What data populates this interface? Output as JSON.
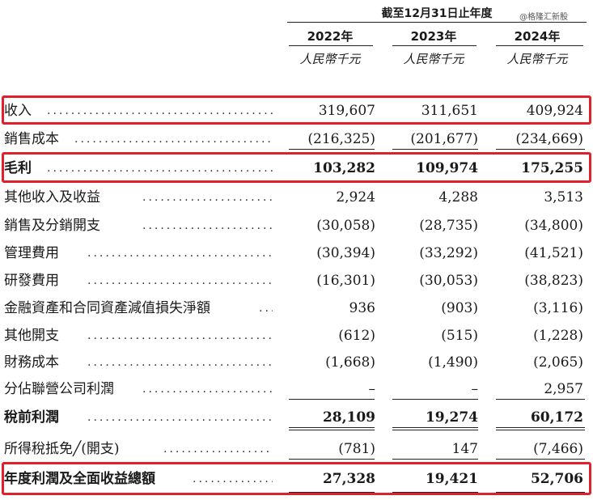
{
  "header": {
    "period": "截至12月31日止年度",
    "watermark": "@格隆汇新股",
    "years": [
      "2022年",
      "2023年",
      "2024年"
    ],
    "unit": "人民幣千元"
  },
  "rows": [
    {
      "label": "收入",
      "values": [
        "319,607",
        "311,651",
        "409,924"
      ],
      "bold": false,
      "highlighted": true
    },
    {
      "label": "銷售成本",
      "values": [
        "(216,325)",
        "(201,677)",
        "(234,669)"
      ],
      "bold": false,
      "highlighted": false
    },
    {
      "label": "毛利",
      "values": [
        "103,282",
        "109,974",
        "175,255"
      ],
      "bold": true,
      "highlighted": true
    },
    {
      "label": "其他收入及收益",
      "values": [
        "2,924",
        "4,288",
        "3,513"
      ],
      "bold": false,
      "highlighted": false
    },
    {
      "label": "銷售及分銷開支",
      "values": [
        "(30,058)",
        "(28,735)",
        "(34,800)"
      ],
      "bold": false,
      "highlighted": false
    },
    {
      "label": "管理費用",
      "values": [
        "(30,394)",
        "(33,292)",
        "(41,521)"
      ],
      "bold": false,
      "highlighted": false
    },
    {
      "label": "研發費用",
      "values": [
        "(16,301)",
        "(30,053)",
        "(38,823)"
      ],
      "bold": false,
      "highlighted": false
    },
    {
      "label": "金融資產和合同資產減值損失淨額",
      "values": [
        "936",
        "(903)",
        "(3,116)"
      ],
      "bold": false,
      "highlighted": false
    },
    {
      "label": "其他開支",
      "values": [
        "(612)",
        "(515)",
        "(1,228)"
      ],
      "bold": false,
      "highlighted": false
    },
    {
      "label": "財務成本",
      "values": [
        "(1,668)",
        "(1,490)",
        "(2,065)"
      ],
      "bold": false,
      "highlighted": false
    },
    {
      "label": "分佔聯營公司利潤",
      "values": [
        "–",
        "–",
        "2,957"
      ],
      "bold": false,
      "highlighted": false
    },
    {
      "label": "稅前利潤",
      "values": [
        "28,109",
        "19,274",
        "60,172"
      ],
      "bold": true,
      "highlighted": false
    },
    {
      "label": "所得稅抵免╱(開支)",
      "values": [
        "(781)",
        "147",
        "(7,466)"
      ],
      "bold": false,
      "highlighted": false
    },
    {
      "label": "年度利潤及全面收益總額",
      "values": [
        "27,328",
        "19,421",
        "52,706"
      ],
      "bold": true,
      "highlighted": true
    }
  ],
  "highlight_color": "#e0202a"
}
